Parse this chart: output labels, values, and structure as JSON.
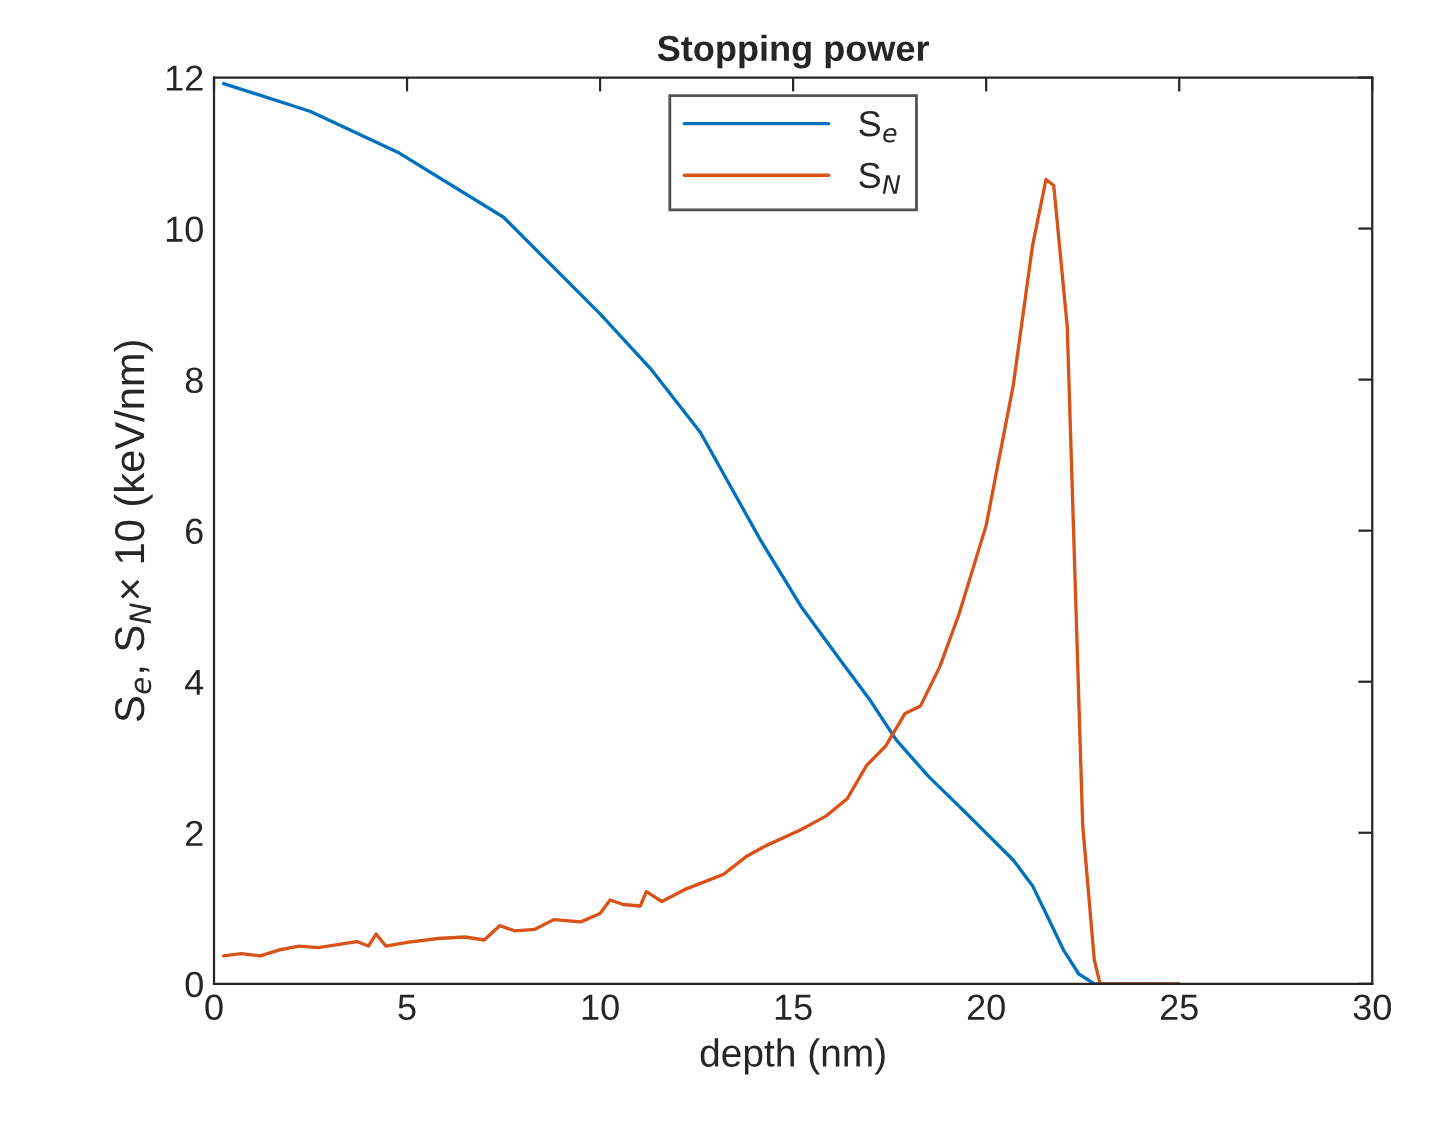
{
  "chart_data": {
    "type": "line",
    "title": "Stopping power",
    "xlabel": "depth (nm)",
    "ylabel": "S$_{e}$, S$_{N}$× 10 (keV/nm)",
    "xlim": [
      0,
      30
    ],
    "ylim": [
      0,
      12
    ],
    "xticks": [
      0,
      5,
      10,
      15,
      20,
      25,
      30
    ],
    "yticks": [
      0,
      2,
      4,
      6,
      8,
      10,
      12
    ],
    "grid": false,
    "legend": "top",
    "marker": "none",
    "line_style": "solid",
    "series": [
      {
        "name": "S$_{e}$",
        "color": "#0072bd",
        "x": [
          0.25,
          2.5,
          4.8,
          7.5,
          10,
          11.3,
          12.6,
          14.15,
          15.2,
          16.2,
          17.0,
          17.67,
          18.5,
          19.5,
          20.7,
          21.2,
          21.55,
          22.0,
          22.4,
          22.8,
          23.5,
          25
        ],
        "values": [
          11.92,
          11.55,
          11.0,
          10.15,
          8.87,
          8.15,
          7.3,
          5.88,
          5.0,
          4.3,
          3.75,
          3.23,
          2.75,
          2.25,
          1.64,
          1.3,
          0.93,
          0.45,
          0.13,
          0,
          0,
          0
        ]
      },
      {
        "name": "S$_{N}$",
        "color": "#d95319",
        "x": [
          0.25,
          0.7,
          1.2,
          1.7,
          2.2,
          2.7,
          3.2,
          3.7,
          4.0,
          4.2,
          4.45,
          5.0,
          5.8,
          6.5,
          7.0,
          7.4,
          7.8,
          8.3,
          8.8,
          9.5,
          10.0,
          10.26,
          10.6,
          11.04,
          11.2,
          11.6,
          12.2,
          12.7,
          13.2,
          13.8,
          14.3,
          15.2,
          15.85,
          16.4,
          16.9,
          17.4,
          17.9,
          18.3,
          18.8,
          19.3,
          20.0,
          20.7,
          21.2,
          21.55,
          21.75,
          22.1,
          22.5,
          22.8,
          22.95,
          25
        ],
        "values": [
          0.37,
          0.4,
          0.37,
          0.45,
          0.5,
          0.48,
          0.52,
          0.56,
          0.5,
          0.66,
          0.5,
          0.55,
          0.6,
          0.62,
          0.58,
          0.77,
          0.7,
          0.72,
          0.85,
          0.82,
          0.93,
          1.11,
          1.05,
          1.03,
          1.22,
          1.09,
          1.25,
          1.35,
          1.45,
          1.69,
          1.83,
          2.04,
          2.22,
          2.45,
          2.89,
          3.15,
          3.58,
          3.68,
          4.2,
          4.9,
          6.07,
          7.92,
          9.77,
          10.65,
          10.57,
          8.7,
          2.1,
          0.32,
          0,
          0
        ]
      }
    ]
  }
}
